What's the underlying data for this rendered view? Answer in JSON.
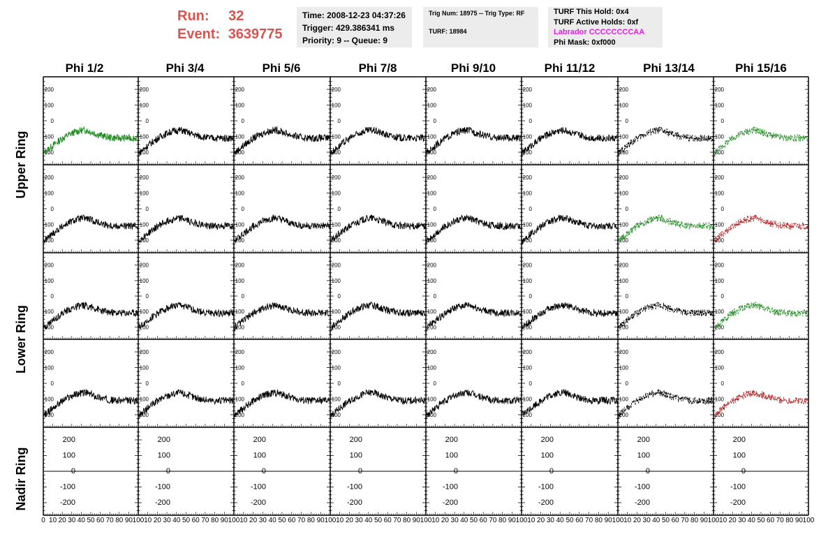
{
  "header": {
    "run_label": "Run:",
    "run_value": "32",
    "event_label": "Event:",
    "event_value": "3639775"
  },
  "time_box": {
    "time": "Time: 2008-12-23 04:37:26",
    "trigger": "Trigger: 429.386341 ms",
    "priority": "Priority: 9 -- Queue: 9"
  },
  "trig_box": {
    "trig": "Trig Num: 18975 -- Trig Type: RF",
    "turf": "TURF: 18984"
  },
  "turf_box": {
    "this_hold": "TURF This Hold: 0x4",
    "active_holds": "TURF Active Holds: 0xf",
    "labrador": "Labrador CCCCCCCCAA",
    "phi_mask": "Phi Mask: 0xf000"
  },
  "phi_titles": [
    "Phi 1/2",
    "Phi 3/4",
    "Phi 5/6",
    "Phi 7/8",
    "Phi 9/10",
    "Phi 11/12",
    "Phi 13/14",
    "Phi 15/16"
  ],
  "ring_labels": [
    "Upper Ring",
    "Lower Ring",
    "Nadir Ring"
  ],
  "colors": {
    "header_red": "#d9534f",
    "trace_black": "#000000",
    "trace_green": "#228b22",
    "trace_red": "#b22222",
    "labrador_magenta": "#e21de2",
    "info_bg": "#ececec"
  },
  "chart_data": {
    "type": "line",
    "grid": "5 rows x 8 columns of waveform panels",
    "ylim": [
      -280,
      280
    ],
    "xlim": [
      0,
      100
    ],
    "y_ticks": [
      "200",
      "100",
      "0",
      "-100",
      "-200"
    ],
    "x_ticks_first": [
      "0",
      "10",
      "20",
      "30",
      "40",
      "50",
      "60",
      "70",
      "80",
      "90",
      "100"
    ],
    "x_ticks_other": [
      "10",
      "20",
      "30",
      "40",
      "50",
      "60",
      "70",
      "80",
      "90",
      "100"
    ],
    "waveform_shape": "rises from about -200 to about -60 near x=45, then settles near -110",
    "panels": [
      {
        "row": 0,
        "col": 0,
        "color": "green",
        "style": "solid"
      },
      {
        "row": 0,
        "col": 1,
        "color": "black",
        "style": "solid"
      },
      {
        "row": 0,
        "col": 2,
        "color": "black",
        "style": "solid"
      },
      {
        "row": 0,
        "col": 3,
        "color": "black",
        "style": "solid"
      },
      {
        "row": 0,
        "col": 4,
        "color": "black",
        "style": "solid"
      },
      {
        "row": 0,
        "col": 5,
        "color": "black",
        "style": "solid"
      },
      {
        "row": 0,
        "col": 6,
        "color": "black",
        "style": "dashed"
      },
      {
        "row": 0,
        "col": 7,
        "color": "green",
        "style": "dashed"
      },
      {
        "row": 1,
        "col": 0,
        "color": "black",
        "style": "solid"
      },
      {
        "row": 1,
        "col": 1,
        "color": "black",
        "style": "solid"
      },
      {
        "row": 1,
        "col": 2,
        "color": "black",
        "style": "solid"
      },
      {
        "row": 1,
        "col": 3,
        "color": "black",
        "style": "solid"
      },
      {
        "row": 1,
        "col": 4,
        "color": "black",
        "style": "solid"
      },
      {
        "row": 1,
        "col": 5,
        "color": "black",
        "style": "solid"
      },
      {
        "row": 1,
        "col": 6,
        "color": "green",
        "style": "dashed"
      },
      {
        "row": 1,
        "col": 7,
        "color": "red",
        "style": "dashed"
      },
      {
        "row": 2,
        "col": 0,
        "color": "black",
        "style": "solid"
      },
      {
        "row": 2,
        "col": 1,
        "color": "black",
        "style": "solid"
      },
      {
        "row": 2,
        "col": 2,
        "color": "black",
        "style": "solid"
      },
      {
        "row": 2,
        "col": 3,
        "color": "black",
        "style": "solid"
      },
      {
        "row": 2,
        "col": 4,
        "color": "black",
        "style": "solid"
      },
      {
        "row": 2,
        "col": 5,
        "color": "black",
        "style": "solid"
      },
      {
        "row": 2,
        "col": 6,
        "color": "black",
        "style": "dashed"
      },
      {
        "row": 2,
        "col": 7,
        "color": "green",
        "style": "dashed"
      },
      {
        "row": 3,
        "col": 0,
        "color": "black",
        "style": "solid"
      },
      {
        "row": 3,
        "col": 1,
        "color": "black",
        "style": "solid"
      },
      {
        "row": 3,
        "col": 2,
        "color": "black",
        "style": "solid"
      },
      {
        "row": 3,
        "col": 3,
        "color": "black",
        "style": "solid"
      },
      {
        "row": 3,
        "col": 4,
        "color": "black",
        "style": "solid"
      },
      {
        "row": 3,
        "col": 5,
        "color": "black",
        "style": "solid"
      },
      {
        "row": 3,
        "col": 6,
        "color": "black",
        "style": "dashed"
      },
      {
        "row": 3,
        "col": 7,
        "color": "red",
        "style": "dashed"
      },
      {
        "row": 4,
        "col": 0,
        "color": "black",
        "style": "flat"
      },
      {
        "row": 4,
        "col": 1,
        "color": "black",
        "style": "flat"
      },
      {
        "row": 4,
        "col": 2,
        "color": "black",
        "style": "flat"
      },
      {
        "row": 4,
        "col": 3,
        "color": "black",
        "style": "flat"
      },
      {
        "row": 4,
        "col": 4,
        "color": "black",
        "style": "flat"
      },
      {
        "row": 4,
        "col": 5,
        "color": "black",
        "style": "flat"
      },
      {
        "row": 4,
        "col": 6,
        "color": "black",
        "style": "flat"
      },
      {
        "row": 4,
        "col": 7,
        "color": "black",
        "style": "flat"
      }
    ]
  }
}
